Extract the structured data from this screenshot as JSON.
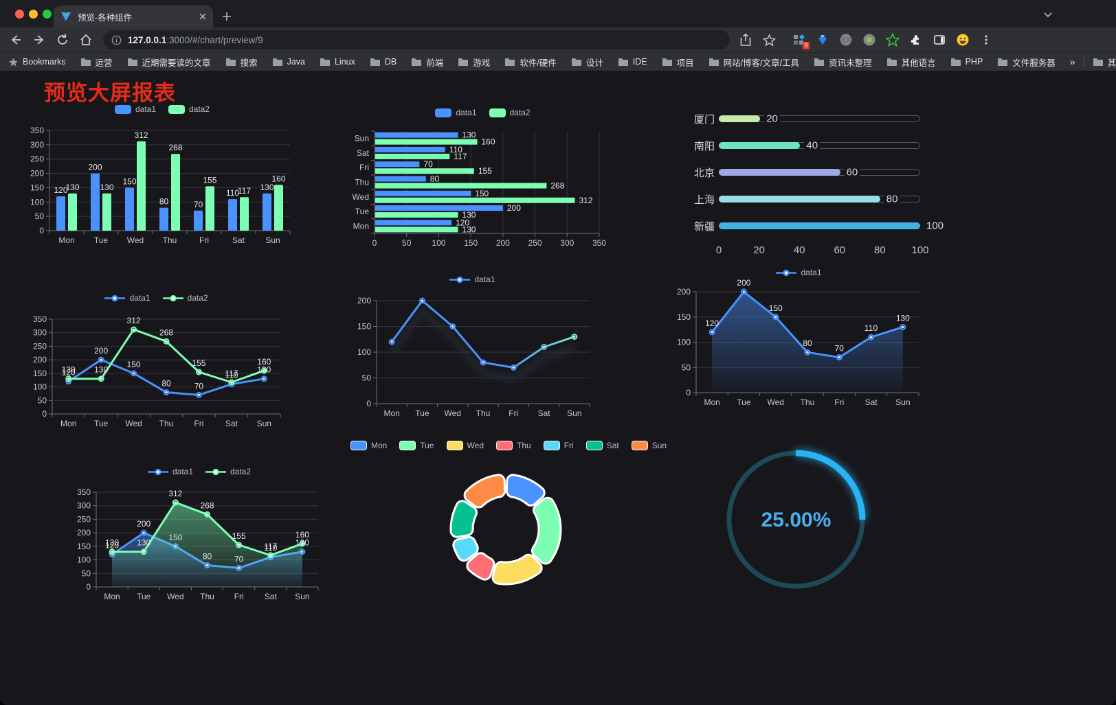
{
  "browser": {
    "tab_title": "预览-各种组件",
    "url_host": "127.0.0.1",
    "url_rest": ":3000/#/chart/preview/9",
    "bookmarks_label": "Bookmarks",
    "bookmarks": [
      "运营",
      "近期需要读的文章",
      "搜索",
      "Java",
      "Linux",
      "DB",
      "前端",
      "游戏",
      "软件/硬件",
      "设计",
      "IDE",
      "项目",
      "网站/博客/文章/工具",
      "资讯未整理",
      "其他语言",
      "PHP",
      "文件服务器"
    ],
    "overflow_symbol": "»",
    "other_bookmarks": "其他书签",
    "extension_badge": "9",
    "icons": {
      "tab_close": "✕",
      "new_tab": "+",
      "menu": "⋮",
      "tab_search": "⌄"
    }
  },
  "page": {
    "title": "预览大屏报表",
    "title_color": "#e52c18"
  },
  "palette": {
    "data1": "#4992ff",
    "data2": "#7cffb2"
  },
  "chart_data": [
    {
      "type": "bar",
      "title": "",
      "categories": [
        "Mon",
        "Tue",
        "Wed",
        "Thu",
        "Fri",
        "Sat",
        "Sun"
      ],
      "series": [
        {
          "name": "data1",
          "color": "#4992ff",
          "values": [
            120,
            200,
            150,
            80,
            70,
            110,
            130
          ]
        },
        {
          "name": "data2",
          "color": "#7cffb2",
          "values": [
            130,
            130,
            312,
            268,
            155,
            117,
            160
          ]
        }
      ],
      "ylim": [
        0,
        350
      ],
      "yticks": [
        0,
        50,
        100,
        150,
        200,
        250,
        300,
        350
      ],
      "show_labels": true,
      "legend_position": "top",
      "grid": true
    },
    {
      "type": "bar-horizontal",
      "title": "",
      "categories": [
        "Mon",
        "Tue",
        "Wed",
        "Thu",
        "Fri",
        "Sat",
        "Sun"
      ],
      "display_order": [
        "Sun",
        "Sat",
        "Fri",
        "Thu",
        "Wed",
        "Tue",
        "Mon"
      ],
      "series": [
        {
          "name": "data1",
          "color": "#4992ff",
          "values": [
            120,
            200,
            150,
            80,
            70,
            110,
            130
          ]
        },
        {
          "name": "data2",
          "color": "#7cffb2",
          "values": [
            130,
            130,
            312,
            268,
            155,
            117,
            160
          ]
        }
      ],
      "xlim": [
        0,
        350
      ],
      "xticks": [
        0,
        50,
        100,
        150,
        200,
        250,
        300,
        350
      ],
      "show_labels": true,
      "legend_position": "top",
      "grid": true
    },
    {
      "type": "bar-progress",
      "title": "",
      "items": [
        {
          "label": "厦门",
          "value": 20,
          "color": "#c4ebad"
        },
        {
          "label": "南阳",
          "value": 40,
          "color": "#6be6c1"
        },
        {
          "label": "北京",
          "value": 60,
          "color": "#a0a7e6"
        },
        {
          "label": "上海",
          "value": 80,
          "color": "#96dee8"
        },
        {
          "label": "新疆",
          "value": 100,
          "color": "#3fb1e3"
        }
      ],
      "xlim": [
        0,
        100
      ],
      "xticks": [
        0,
        20,
        40,
        60,
        80,
        100
      ]
    },
    {
      "type": "line",
      "title": "",
      "categories": [
        "Mon",
        "Tue",
        "Wed",
        "Thu",
        "Fri",
        "Sat",
        "Sun"
      ],
      "series": [
        {
          "name": "data1",
          "color": "#4992ff",
          "values": [
            120,
            200,
            150,
            80,
            70,
            110,
            130
          ]
        },
        {
          "name": "data2",
          "color": "#7cffb2",
          "values": [
            130,
            130,
            312,
            268,
            155,
            117,
            160
          ]
        }
      ],
      "ylim": [
        0,
        350
      ],
      "yticks": [
        0,
        50,
        100,
        150,
        200,
        250,
        300,
        350
      ],
      "show_labels": true,
      "legend_position": "top",
      "grid": true
    },
    {
      "type": "line",
      "title": "",
      "categories": [
        "Mon",
        "Tue",
        "Wed",
        "Thu",
        "Fri",
        "Sat",
        "Sun"
      ],
      "series": [
        {
          "name": "data1",
          "color": "#4992ff",
          "gradient": [
            "#4992ff",
            "#7cffb2"
          ],
          "values": [
            120,
            200,
            150,
            80,
            70,
            110,
            130
          ]
        }
      ],
      "ylim": [
        0,
        200
      ],
      "yticks": [
        0,
        50,
        100,
        150,
        200
      ],
      "show_labels": false,
      "legend_position": "top",
      "grid": true
    },
    {
      "type": "area",
      "title": "",
      "categories": [
        "Mon",
        "Tue",
        "Wed",
        "Thu",
        "Fri",
        "Sat",
        "Sun"
      ],
      "series": [
        {
          "name": "data1",
          "color": "#4992ff",
          "values": [
            120,
            200,
            150,
            80,
            70,
            110,
            130
          ]
        }
      ],
      "ylim": [
        0,
        200
      ],
      "yticks": [
        0,
        50,
        100,
        150,
        200
      ],
      "show_labels": true,
      "legend_position": "top",
      "grid": true
    },
    {
      "type": "area",
      "title": "",
      "categories": [
        "Mon",
        "Tue",
        "Wed",
        "Thu",
        "Fri",
        "Sat",
        "Sun"
      ],
      "series": [
        {
          "name": "data1",
          "color": "#4992ff",
          "values": [
            120,
            200,
            150,
            80,
            70,
            110,
            130
          ]
        },
        {
          "name": "data2",
          "color": "#7cffb2",
          "values": [
            130,
            130,
            312,
            268,
            155,
            117,
            160
          ]
        }
      ],
      "ylim": [
        0,
        350
      ],
      "yticks": [
        0,
        50,
        100,
        150,
        200,
        250,
        300,
        350
      ],
      "show_labels": true,
      "legend_position": "top",
      "grid": true
    },
    {
      "type": "pie",
      "title": "",
      "shape": "donut",
      "labels": [
        "Mon",
        "Tue",
        "Wed",
        "Thu",
        "Fri",
        "Sat",
        "Sun"
      ],
      "values": [
        120,
        200,
        150,
        80,
        70,
        110,
        130
      ],
      "colors": [
        "#4992ff",
        "#7cffb2",
        "#fddd60",
        "#ff6e76",
        "#58d9f9",
        "#05c091",
        "#ff8a45"
      ],
      "legend_position": "top"
    },
    {
      "type": "gauge",
      "title": "",
      "value": 25,
      "label": "25.00%",
      "color": "#28b4f4",
      "track_color": "#1c4a58",
      "text_color": "#4aaff0"
    }
  ]
}
